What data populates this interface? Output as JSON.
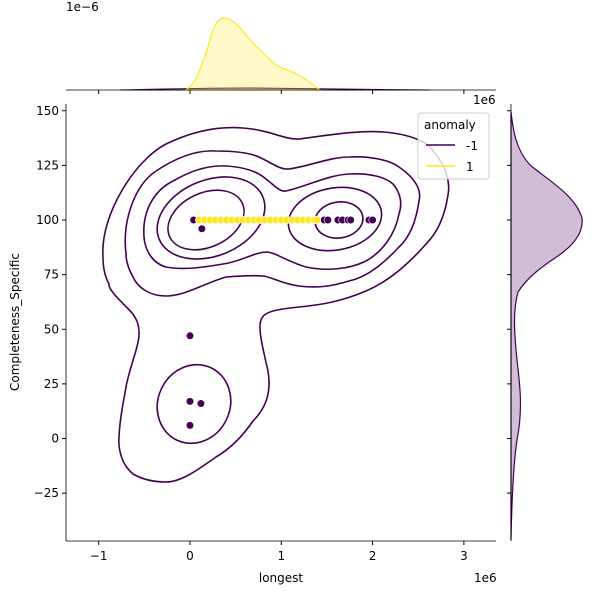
{
  "chart_data": {
    "type": "scatter",
    "subtype": "jointplot with KDE contours and marginal KDEs",
    "xlabel": "longest",
    "ylabel": "Completeness_Specific",
    "x_offset_label": "1e6",
    "y_offset_label": "1e6",
    "top_marginal_offset_label": "1e−6",
    "xlim": [
      -1.35,
      3.35
    ],
    "ylim": [
      -45,
      153
    ],
    "x_ticks": [
      "−1",
      "0",
      "1",
      "2",
      "3"
    ],
    "x_tick_values": [
      -1,
      0,
      1,
      2,
      3
    ],
    "y_ticks": [
      "−25",
      "0",
      "25",
      "50",
      "75",
      "100",
      "125",
      "150"
    ],
    "y_tick_values": [
      -25,
      0,
      25,
      50,
      75,
      100,
      125,
      150
    ],
    "grid": false,
    "legend": {
      "title": "anomaly",
      "placement": "top-right",
      "entries": [
        {
          "label": "-1",
          "color": "#440154"
        },
        {
          "label": "1",
          "color": "#fde725"
        }
      ]
    },
    "series": [
      {
        "name": "-1",
        "color": "#440154",
        "points": [
          [
            0.04,
            100
          ],
          [
            0.13,
            96
          ],
          [
            0.0,
            47
          ],
          [
            0.0,
            17
          ],
          [
            0.12,
            16
          ],
          [
            0.0,
            6
          ],
          [
            1.47,
            100
          ],
          [
            1.51,
            100
          ],
          [
            1.62,
            100
          ],
          [
            1.67,
            100
          ],
          [
            1.73,
            100
          ],
          [
            1.76,
            100
          ],
          [
            1.96,
            100
          ],
          [
            2.0,
            100
          ]
        ]
      },
      {
        "name": "1",
        "color": "#fde725",
        "points": [
          [
            0.1,
            100
          ],
          [
            0.16,
            100
          ],
          [
            0.22,
            100
          ],
          [
            0.28,
            100
          ],
          [
            0.34,
            100
          ],
          [
            0.4,
            100
          ],
          [
            0.46,
            100
          ],
          [
            0.52,
            100
          ],
          [
            0.58,
            100
          ],
          [
            0.64,
            100
          ],
          [
            0.7,
            100
          ],
          [
            0.76,
            100
          ],
          [
            0.82,
            100
          ],
          [
            0.88,
            100
          ],
          [
            0.94,
            100
          ],
          [
            1.0,
            100
          ],
          [
            1.06,
            100
          ],
          [
            1.12,
            100
          ],
          [
            1.18,
            100
          ],
          [
            1.24,
            100
          ],
          [
            1.3,
            100
          ],
          [
            1.36,
            100
          ],
          [
            1.39,
            100
          ]
        ]
      }
    ]
  }
}
